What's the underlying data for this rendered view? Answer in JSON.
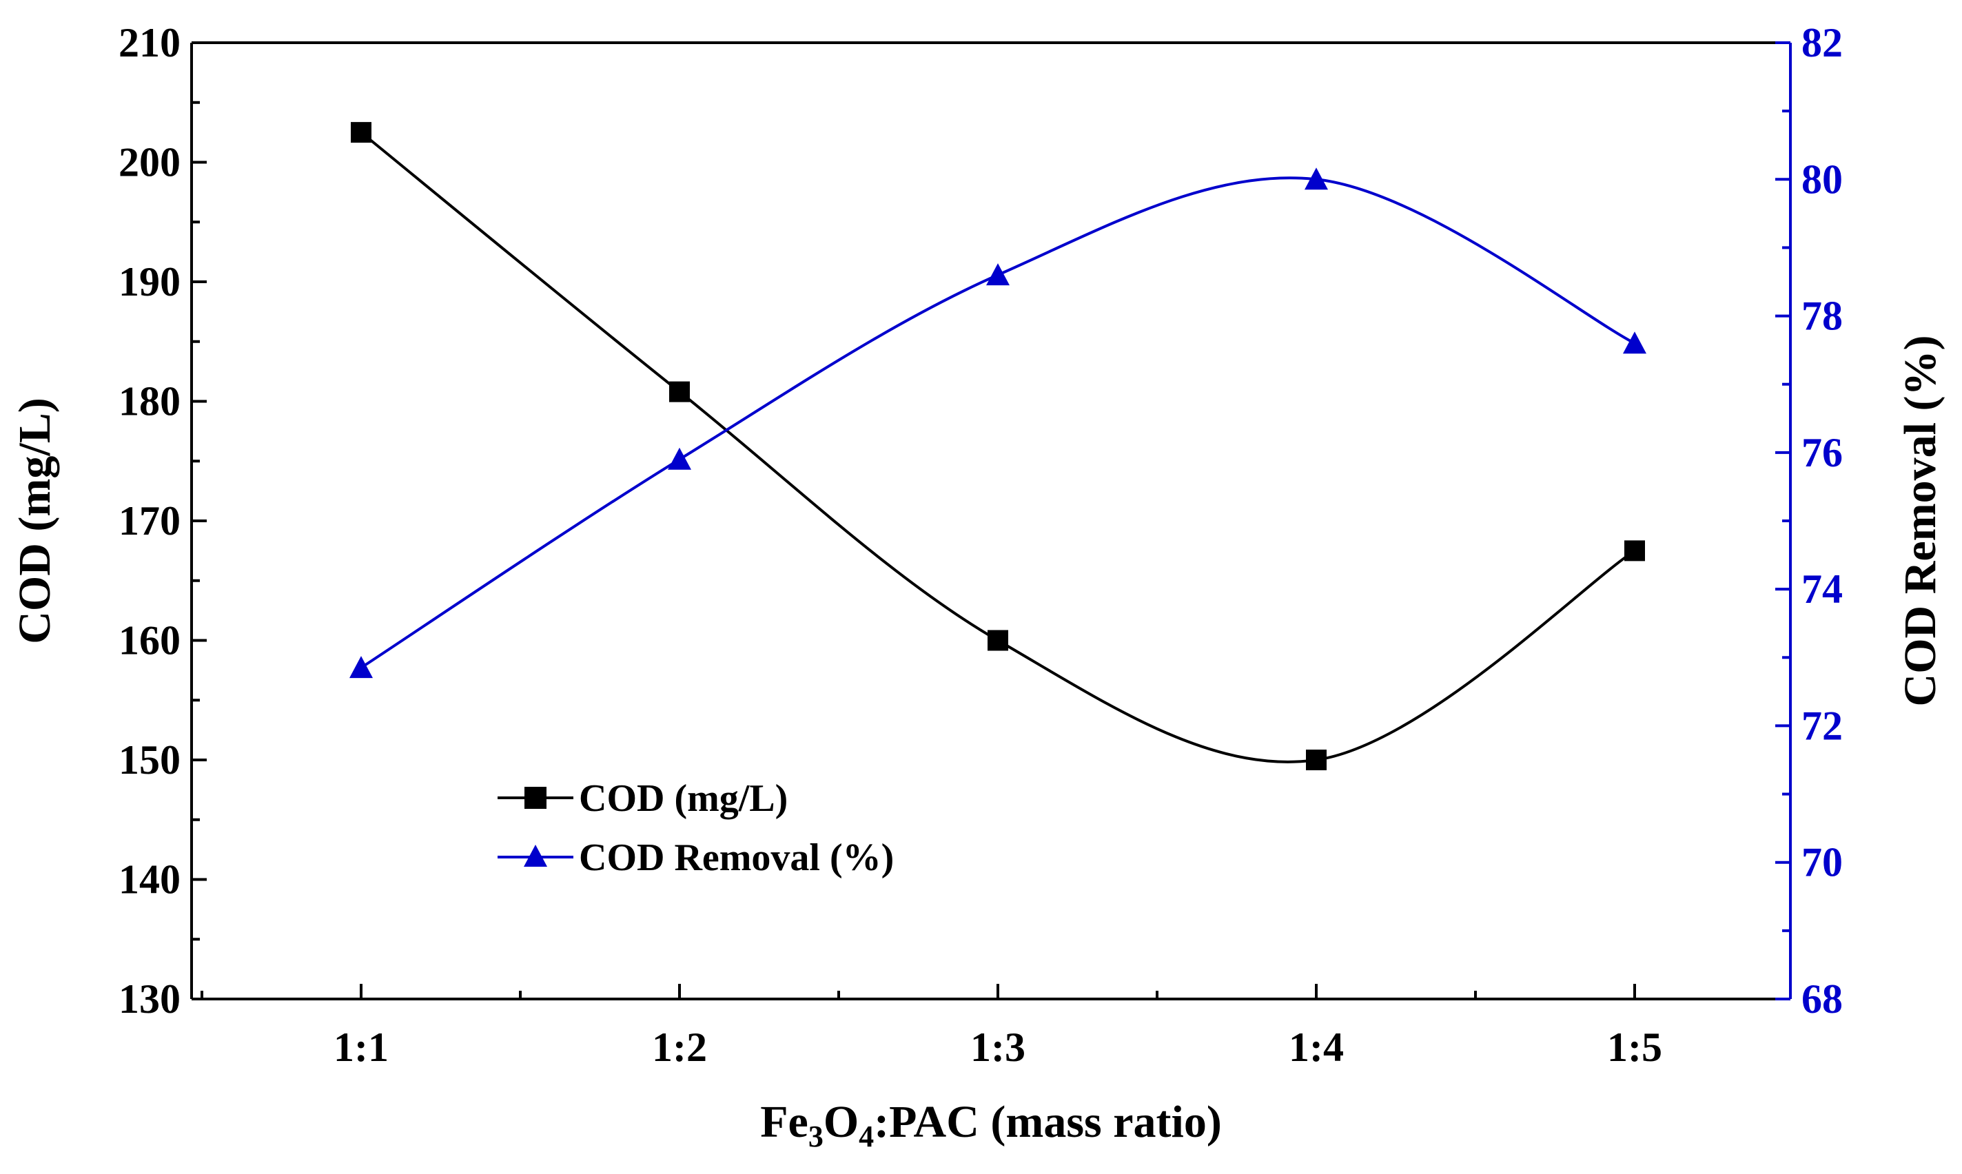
{
  "chart_data": {
    "type": "line",
    "categories": [
      "1:1",
      "1:2",
      "1:3",
      "1:4",
      "1:5"
    ],
    "xlabel": {
      "pre": "Fe",
      "sub1": "3",
      "mid": "O",
      "sub2": "4",
      "post": ":PAC (mass ratio)"
    },
    "series": [
      {
        "name": "COD (mg/L)",
        "axis": "left",
        "marker": "square",
        "color": "#000000",
        "values": [
          202.5,
          180.8,
          160.0,
          150.0,
          167.5
        ]
      },
      {
        "name": "COD Removal (%)",
        "axis": "right",
        "marker": "triangle",
        "color": "#0000CC",
        "values": [
          72.85,
          75.9,
          78.6,
          80.0,
          77.6
        ]
      }
    ],
    "left_axis": {
      "label": "COD (mg/L)",
      "min": 130,
      "max": 210,
      "ticks": [
        130,
        140,
        150,
        160,
        170,
        180,
        190,
        200,
        210
      ],
      "color": "#000000"
    },
    "right_axis": {
      "label": "COD Removal (%)",
      "min": 68,
      "max": 82,
      "ticks": [
        68,
        70,
        72,
        74,
        76,
        78,
        80,
        82
      ],
      "color": "#0000CC"
    },
    "legend_position": "bottom-left"
  }
}
